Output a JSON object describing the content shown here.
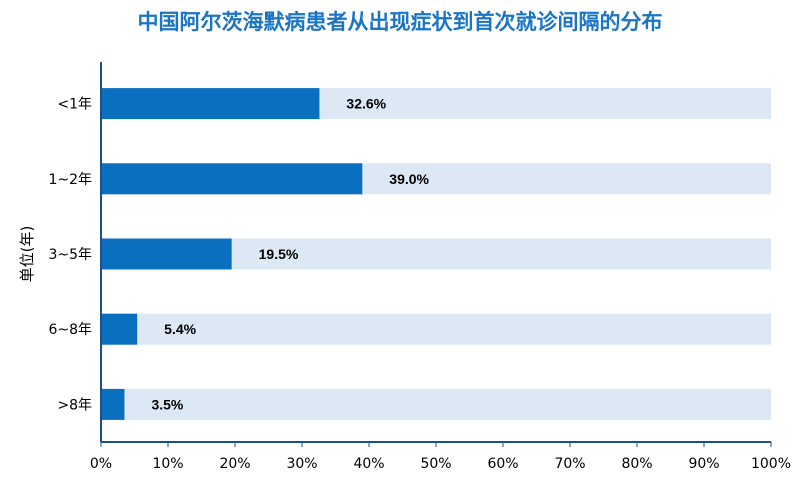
{
  "chart_data": {
    "type": "bar",
    "orientation": "horizontal",
    "title": "中国阿尔茨海默病患者从出现症状到首次就诊间隔的分布",
    "ylabel": "单位(年)",
    "xlabel": "",
    "categories": [
      "<1年",
      "1~2年",
      "3~5年",
      "6~8年",
      ">8年"
    ],
    "values": [
      32.6,
      39.0,
      19.5,
      5.4,
      3.5
    ],
    "data_labels": [
      "32.6%",
      "39.0%",
      "19.5%",
      "5.4%",
      "3.5%"
    ],
    "xlim": [
      0,
      100
    ],
    "x_ticks": [
      0,
      10,
      20,
      30,
      40,
      50,
      60,
      70,
      80,
      90,
      100
    ],
    "x_tick_labels": [
      "0%",
      "10%",
      "20%",
      "30%",
      "40%",
      "50%",
      "60%",
      "70%",
      "80%",
      "90%",
      "100%"
    ],
    "grid": false,
    "legend": "none",
    "colors": {
      "bar": "#0b6fbf",
      "track": "#dde8f5",
      "title": "#1a75c6",
      "axis": "#1f4e8c"
    }
  }
}
